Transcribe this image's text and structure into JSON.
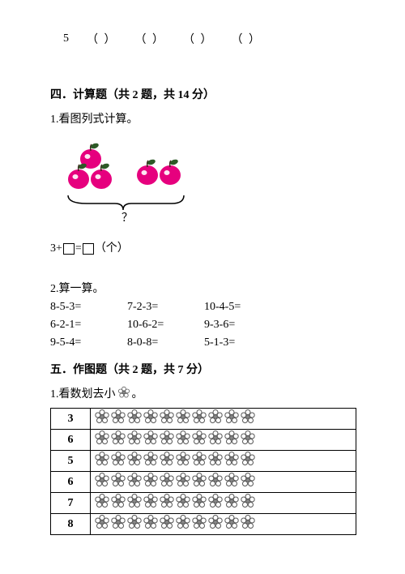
{
  "top": {
    "number": "5",
    "parens": [
      "（  ）",
      "（  ）",
      "（  ）",
      "（  ）"
    ]
  },
  "section4": {
    "title": "四．计算题（共 2 题，共 14 分）",
    "q1_label": "1.看图列式计算。",
    "equation_prefix": "3+",
    "equation_mid": "=",
    "equation_suffix": "（个）",
    "q2_label": "2.算一算。",
    "calc": [
      [
        "8-5-3=",
        "7-2-3=",
        "10-4-5="
      ],
      [
        "6-2-1=",
        "10-6-2=",
        "9-3-6="
      ],
      [
        "9-5-4=",
        "8-0-8=",
        "5-1-3="
      ]
    ]
  },
  "section5": {
    "title": "五．作图题（共 2 题，共 7 分）",
    "q1_label": "1.看数划去小      。",
    "nums": [
      "3",
      "6",
      "5",
      "6",
      "7",
      "8"
    ],
    "flower_count": 10
  },
  "colors": {
    "apple_fill": "#e6007e",
    "apple_highlight": "#ffffff",
    "leaf_fill": "#2d5a27",
    "flower_stroke": "#000000",
    "flower_center": "#888888"
  }
}
